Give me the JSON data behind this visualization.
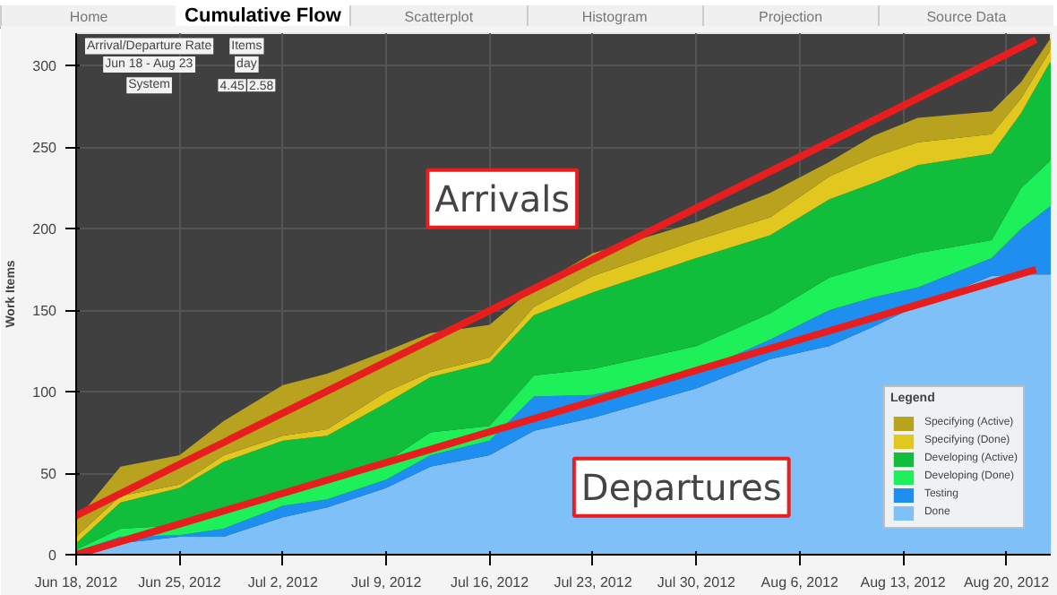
{
  "chart_data": {
    "type": "area",
    "stacked": true,
    "title": "Cumulative Flow",
    "ylabel": "Work Items",
    "legend_title": "Legend",
    "legend": "bottom right",
    "grid": true,
    "annotations": [
      "Home",
      "Scatterplot",
      "Histogram",
      "Projection",
      "Source Data",
      "Arrival/Departure Rate",
      "Jun 18 - Aug 23",
      "Items",
      "day",
      "System",
      "4.45",
      "2.58"
    ],
    "x": [
      "2012-06-18",
      "2012-06-21",
      "2012-06-25",
      "2012-06-28",
      "2012-07-02",
      "2012-07-05",
      "2012-07-09",
      "2012-07-12",
      "2012-07-16",
      "2012-07-19",
      "2012-07-23",
      "2012-07-30",
      "2012-08-04",
      "2012-08-08",
      "2012-08-11",
      "2012-08-14",
      "2012-08-19",
      "2012-08-21",
      "2012-08-23"
    ],
    "xlim": [
      "2012-06-18",
      "2012-08-23"
    ],
    "xticks": [
      {
        "value": "2012-06-18",
        "label": "Jun 18, 2012"
      },
      {
        "value": "2012-06-25",
        "label": "Jun 25, 2012"
      },
      {
        "value": "2012-07-02",
        "label": "Jul 2, 2012"
      },
      {
        "value": "2012-07-09",
        "label": "Jul 9, 2012"
      },
      {
        "value": "2012-07-16",
        "label": "Jul 16, 2012"
      },
      {
        "value": "2012-07-23",
        "label": "Jul 23, 2012"
      },
      {
        "value": "2012-07-30",
        "label": "Jul 30, 2012"
      },
      {
        "value": "2012-08-06",
        "label": "Aug 6, 2012"
      },
      {
        "value": "2012-08-13",
        "label": "Aug 13, 2012"
      },
      {
        "value": "2012-08-20",
        "label": "Aug 20, 2012"
      }
    ],
    "ylim": [
      0,
      320
    ],
    "yticks": [
      0,
      50,
      100,
      150,
      200,
      250,
      300
    ],
    "series": [
      {
        "name": "Done",
        "color": "#80c0f8",
        "values": [
          0,
          7,
          11,
          11,
          23,
          29,
          41,
          54,
          61,
          76,
          84,
          102,
          120,
          128,
          140,
          153,
          171,
          172,
          172
        ]
      },
      {
        "name": "Testing",
        "color": "#1e8ef0",
        "values": [
          2,
          4,
          1,
          5,
          7,
          5,
          5,
          7,
          9,
          21,
          14,
          10,
          12,
          22,
          18,
          11,
          11,
          28,
          42
        ]
      },
      {
        "name": "Developing (Done)",
        "color": "#1ef05a",
        "values": [
          1,
          5,
          6,
          9,
          9,
          12,
          11,
          14,
          9,
          13,
          16,
          16,
          16,
          20,
          20,
          21,
          11,
          25,
          28
        ]
      },
      {
        "name": "Developing (Active)",
        "color": "#10be3c",
        "values": [
          4,
          16,
          23,
          32,
          31,
          27,
          36,
          34,
          39,
          37,
          47,
          54,
          48,
          48,
          50,
          54,
          53,
          46,
          61
        ]
      },
      {
        "name": "Specifying (Done)",
        "color": "#e2c81e",
        "values": [
          4,
          4,
          2,
          4,
          3,
          4,
          7,
          3,
          3,
          5,
          10,
          11,
          11,
          14,
          16,
          14,
          12,
          9,
          7
        ]
      },
      {
        "name": "Specifying (Active)",
        "color": "#b8a21e",
        "values": [
          10,
          18,
          18,
          21,
          31,
          34,
          25,
          24,
          20,
          12,
          14,
          11,
          15,
          9,
          13,
          15,
          14,
          10,
          7
        ]
      },
      {
        "type": "line",
        "name": "Arrivals",
        "color": "#e81e1e",
        "x": [
          "2012-06-18",
          "2012-08-22"
        ],
        "values": [
          24,
          316
        ]
      },
      {
        "type": "line",
        "name": "Departures",
        "color": "#e81e1e",
        "x": [
          "2012-06-18",
          "2012-08-22"
        ],
        "values": [
          0,
          175
        ]
      }
    ]
  }
}
